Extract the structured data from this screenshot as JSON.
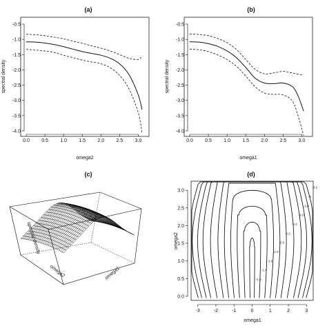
{
  "panels": {
    "a": {
      "title": "(a)"
    },
    "b": {
      "title": "(b)"
    },
    "c": {
      "title": "(c)"
    },
    "d": {
      "title": "(d)"
    }
  },
  "chart_data": [
    {
      "panel": "(a)",
      "type": "line",
      "title": "(a)",
      "xlabel": "omega2",
      "ylabel": "spectral density",
      "xlim": [
        0,
        3.14
      ],
      "ylim": [
        -4.0,
        -0.5
      ],
      "xticks": [
        "0.0",
        "0.5",
        "1.0",
        "1.5",
        "2.0",
        "2.5",
        "3.0"
      ],
      "yticks": [
        "-0.5",
        "-1.0",
        "-1.5",
        "-2.0",
        "-2.5",
        "-3.0",
        "-3.5",
        "-4.0"
      ],
      "x": [
        0.0,
        0.25,
        0.5,
        0.75,
        1.0,
        1.25,
        1.5,
        1.75,
        2.0,
        2.25,
        2.5,
        2.75,
        3.0,
        3.1
      ],
      "series": [
        {
          "style": "solid",
          "values": [
            -1.08,
            -1.09,
            -1.12,
            -1.17,
            -1.24,
            -1.32,
            -1.4,
            -1.46,
            -1.52,
            -1.62,
            -1.8,
            -2.15,
            -2.82,
            -3.3
          ]
        },
        {
          "style": "dashed",
          "values": [
            -0.83,
            -0.85,
            -0.88,
            -0.93,
            -0.98,
            -1.06,
            -1.13,
            -1.21,
            -1.29,
            -1.38,
            -1.5,
            -1.62,
            -1.66,
            -1.55
          ]
        },
        {
          "style": "dashed",
          "values": [
            -1.33,
            -1.35,
            -1.38,
            -1.43,
            -1.52,
            -1.6,
            -1.68,
            -1.74,
            -1.8,
            -1.93,
            -2.18,
            -2.62,
            -3.4,
            -4.05
          ]
        }
      ]
    },
    {
      "panel": "(b)",
      "type": "line",
      "title": "(b)",
      "xlabel": "omega1",
      "ylabel": "spectral density",
      "xlim": [
        0,
        3.14
      ],
      "ylim": [
        -4.0,
        -0.5
      ],
      "xticks": [
        "0.0",
        "0.5",
        "1.0",
        "1.5",
        "2.0",
        "2.5",
        "3.0"
      ],
      "yticks": [
        "-0.5",
        "-1.0",
        "-1.5",
        "-2.0",
        "-2.5",
        "-3.0",
        "-3.5",
        "-4.0"
      ],
      "x": [
        0.0,
        0.25,
        0.5,
        0.75,
        1.0,
        1.25,
        1.5,
        1.75,
        2.0,
        2.25,
        2.5,
        2.75,
        2.9,
        3.05
      ],
      "series": [
        {
          "style": "solid",
          "values": [
            -1.08,
            -1.09,
            -1.14,
            -1.23,
            -1.38,
            -1.6,
            -1.92,
            -2.27,
            -2.43,
            -2.45,
            -2.43,
            -2.55,
            -2.85,
            -3.35
          ]
        },
        {
          "style": "dashed",
          "values": [
            -0.82,
            -0.84,
            -0.88,
            -0.97,
            -1.11,
            -1.33,
            -1.66,
            -1.98,
            -2.13,
            -2.1,
            -2.05,
            -2.1,
            -2.14,
            -2.17
          ]
        },
        {
          "style": "dashed",
          "values": [
            -1.32,
            -1.34,
            -1.4,
            -1.51,
            -1.66,
            -1.88,
            -2.2,
            -2.55,
            -2.76,
            -2.8,
            -2.82,
            -3.02,
            -3.5,
            -4.15
          ]
        }
      ]
    },
    {
      "panel": "(c)",
      "type": "surface",
      "title": "(c)",
      "xlabel": "omega2",
      "ylabel": "omega1",
      "zlabel": "spectral density"
    },
    {
      "panel": "(d)",
      "type": "contour",
      "title": "(d)",
      "xlabel": "omega1",
      "ylabel": "omega2",
      "xlim": [
        -3.14,
        3.14
      ],
      "ylim": [
        0,
        3.14
      ],
      "xticks": [
        "-3",
        "-2",
        "-1",
        "0",
        "1",
        "2",
        "3"
      ],
      "yticks": [
        "0.0",
        "0.5",
        "1.0",
        "1.5",
        "2.0",
        "2.5",
        "3.0"
      ],
      "levels": [
        {
          "label": "-1.2",
          "x": [
            -0.12,
            0.12
          ]
        },
        {
          "label": "-1.4",
          "x": [
            -0.4,
            0.4
          ]
        },
        {
          "label": "-1.6",
          "x": [
            -0.7,
            0.7
          ]
        },
        {
          "label": "-1.8",
          "x": [
            -1.0,
            1.0
          ]
        },
        {
          "label": "-2.0",
          "x": [
            -1.3,
            1.3
          ]
        },
        {
          "label": "-2.2",
          "x": [
            -1.6,
            1.6
          ]
        },
        {
          "label": "-2.4",
          "x": [
            -1.95,
            1.95
          ]
        },
        {
          "label": "-2.6",
          "x": [
            -2.3,
            2.3
          ]
        },
        {
          "label": "-2.8",
          "x": [
            -2.55,
            2.55
          ]
        },
        {
          "label": "-3",
          "x": [
            -2.8,
            2.8
          ]
        },
        {
          "label": "-3.2",
          "x": [
            -3.0,
            3.0
          ]
        }
      ]
    }
  ]
}
